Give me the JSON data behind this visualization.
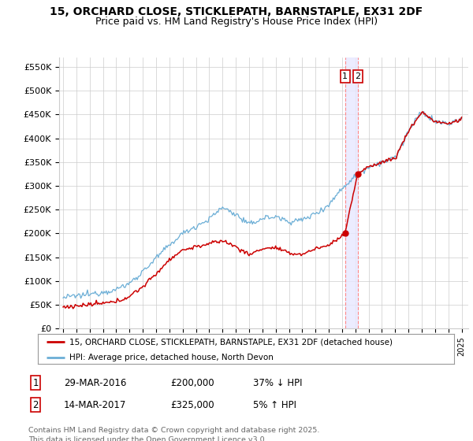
{
  "title": "15, ORCHARD CLOSE, STICKLEPATH, BARNSTAPLE, EX31 2DF",
  "subtitle": "Price paid vs. HM Land Registry's House Price Index (HPI)",
  "ylim": [
    0,
    570000
  ],
  "yticks": [
    0,
    50000,
    100000,
    150000,
    200000,
    250000,
    300000,
    350000,
    400000,
    450000,
    500000,
    550000
  ],
  "ytick_labels": [
    "£0",
    "£50K",
    "£100K",
    "£150K",
    "£200K",
    "£250K",
    "£300K",
    "£350K",
    "£400K",
    "£450K",
    "£500K",
    "£550K"
  ],
  "hpi_color": "#6baed6",
  "price_color": "#cc0000",
  "vline_color": "#ffcccc",
  "vshade_color": "#e8e8ff",
  "transaction1_date": 2016.23,
  "transaction2_date": 2017.2,
  "transaction1_price": 200000,
  "transaction2_price": 325000,
  "legend_label1": "15, ORCHARD CLOSE, STICKLEPATH, BARNSTAPLE, EX31 2DF (detached house)",
  "legend_label2": "HPI: Average price, detached house, North Devon",
  "table_row1": [
    "1",
    "29-MAR-2016",
    "£200,000",
    "37% ↓ HPI"
  ],
  "table_row2": [
    "2",
    "14-MAR-2017",
    "£325,000",
    "5% ↑ HPI"
  ],
  "footnote": "Contains HM Land Registry data © Crown copyright and database right 2025.\nThis data is licensed under the Open Government Licence v3.0.",
  "bg_color": "#ffffff",
  "grid_color": "#cccccc",
  "title_fontsize": 10,
  "subtitle_fontsize": 9,
  "tick_fontsize": 8,
  "xstart": 1995,
  "xend": 2025,
  "hpi_anchors": {
    "1995": 65000,
    "1997": 72000,
    "1999": 82000,
    "2000": 95000,
    "2001": 120000,
    "2002": 148000,
    "2003": 175000,
    "2004": 200000,
    "2005": 215000,
    "2006": 230000,
    "2007": 255000,
    "2008": 240000,
    "2009": 218000,
    "2010": 232000,
    "2011": 235000,
    "2012": 225000,
    "2013": 228000,
    "2014": 242000,
    "2015": 260000,
    "2016": 295000,
    "2017": 320000,
    "2018": 340000,
    "2019": 350000,
    "2020": 358000,
    "2021": 415000,
    "2022": 455000,
    "2023": 435000,
    "2024": 430000,
    "2025": 440000
  },
  "price_anchors": {
    "1995": 45000,
    "1997": 50000,
    "1999": 56000,
    "2000": 68000,
    "2001": 88000,
    "2002": 115000,
    "2003": 145000,
    "2004": 165000,
    "2005": 172000,
    "2006": 178000,
    "2007": 185000,
    "2008": 172000,
    "2009": 155000,
    "2010": 168000,
    "2011": 170000,
    "2012": 158000,
    "2013": 156000,
    "2014": 168000,
    "2015": 175000,
    "2016.23": 200000,
    "2016.5": 240000,
    "2017.20": 325000,
    "2018": 340000,
    "2019": 350000,
    "2020": 358000,
    "2021": 415000,
    "2022": 455000,
    "2023": 435000,
    "2024": 430000,
    "2025": 440000
  }
}
